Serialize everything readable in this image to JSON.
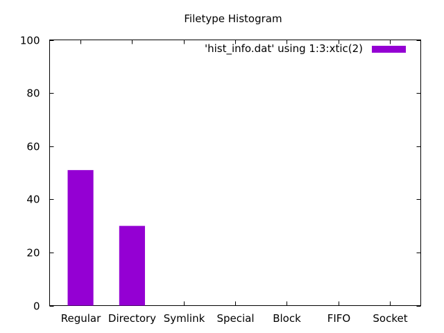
{
  "chart_data": {
    "type": "bar",
    "title": "Filetype Histogram",
    "xlabel": "",
    "ylabel": "",
    "categories": [
      "Regular",
      "Directory",
      "Symlink",
      "Special",
      "Block",
      "FIFO",
      "Socket"
    ],
    "series": [
      {
        "name": "'hist_info.dat' using 1:3:xtic(2)",
        "values": [
          51,
          30,
          0,
          0,
          0,
          0,
          0
        ],
        "color": "#9400d3"
      }
    ],
    "ylim": [
      0,
      100
    ],
    "yticks": [
      0,
      20,
      40,
      60,
      80,
      100
    ],
    "grid": false,
    "legend_position": "top-right"
  }
}
